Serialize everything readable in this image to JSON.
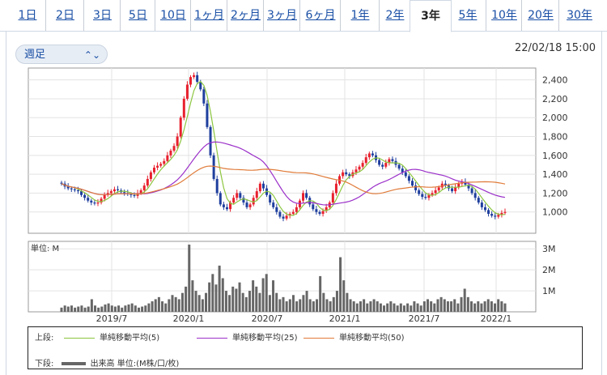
{
  "tabs": [
    {
      "label": "1日"
    },
    {
      "label": "2日"
    },
    {
      "label": "3日"
    },
    {
      "label": "5日"
    },
    {
      "label": "10日"
    },
    {
      "label": "1ヶ月"
    },
    {
      "label": "2ヶ月"
    },
    {
      "label": "3ヶ月"
    },
    {
      "label": "6ヶ月"
    },
    {
      "label": "1年"
    },
    {
      "label": "2年"
    },
    {
      "label": "3年",
      "active": true
    },
    {
      "label": "5年"
    },
    {
      "label": "10年"
    },
    {
      "label": "20年"
    },
    {
      "label": "30年"
    }
  ],
  "period_select": {
    "value": "週足"
  },
  "datetime": "22/02/18 15:00",
  "colors": {
    "up": "#e8202e",
    "down": "#1f3f9e",
    "ma5": "#8cc63f",
    "ma25": "#9b30c9",
    "ma50": "#e07b39",
    "volume": "#666666"
  },
  "chart_data": [
    {
      "type": "candlestick",
      "xlim": [
        "2019-02",
        "2022-02"
      ],
      "ylim": [
        800,
        2500
      ],
      "x_tick_labels": [
        "2019/7",
        "2020/1",
        "2020/7",
        "2021/1",
        "2021/7",
        "2022/1"
      ],
      "y_tick_labels": [
        "2,400",
        "2,200",
        "2,000",
        "1,800",
        "1,600",
        "1,400",
        "1,200",
        "1,000"
      ],
      "close": [
        1300,
        1270,
        1250,
        1240,
        1230,
        1220,
        1180,
        1150,
        1120,
        1100,
        1090,
        1100,
        1140,
        1180,
        1200,
        1220,
        1240,
        1230,
        1210,
        1200,
        1190,
        1180,
        1170,
        1200,
        1230,
        1280,
        1350,
        1420,
        1470,
        1490,
        1510,
        1540,
        1600,
        1650,
        1700,
        1800,
        2000,
        2200,
        2350,
        2430,
        2450,
        2380,
        2300,
        2150,
        1900,
        1600,
        1350,
        1200,
        1080,
        1050,
        1030,
        1100,
        1150,
        1200,
        1150,
        1100,
        1050,
        1080,
        1150,
        1220,
        1300,
        1250,
        1180,
        1100,
        1050,
        1000,
        950,
        930,
        960,
        980,
        1000,
        1050,
        1120,
        1200,
        1150,
        1080,
        1030,
        1000,
        980,
        1010,
        1050,
        1100,
        1200,
        1300,
        1380,
        1420,
        1400,
        1380,
        1420,
        1450,
        1480,
        1520,
        1580,
        1620,
        1600,
        1550,
        1500,
        1480,
        1520,
        1560,
        1540,
        1500,
        1460,
        1420,
        1380,
        1330,
        1280,
        1230,
        1190,
        1160,
        1150,
        1180,
        1200,
        1230,
        1260,
        1300,
        1280,
        1250,
        1220,
        1260,
        1300,
        1320,
        1290,
        1250,
        1200,
        1150,
        1100,
        1050,
        1020,
        980,
        960,
        950,
        970,
        990,
        1000
      ],
      "ma_legend": {
        "upper_label": "上段:",
        "lower_label": "下段:",
        "items": [
          {
            "label": "単純移動平均(5)"
          },
          {
            "label": "単純移動平均(25)"
          },
          {
            "label": "単純移動平均(50)"
          }
        ],
        "volume_label": "出来高 単位:(M株/口/枚)"
      }
    },
    {
      "type": "bar",
      "unit_label": "単位: M",
      "ylim": [
        0,
        3.2
      ],
      "y_tick_labels": [
        "3M",
        "2M",
        "1M"
      ],
      "values": [
        0.2,
        0.3,
        0.25,
        0.3,
        0.2,
        0.25,
        0.3,
        0.2,
        0.25,
        0.6,
        0.3,
        0.2,
        0.25,
        0.35,
        0.4,
        0.3,
        0.25,
        0.3,
        0.2,
        0.3,
        0.35,
        0.4,
        0.3,
        0.2,
        0.25,
        0.3,
        0.4,
        0.5,
        0.6,
        0.7,
        0.5,
        0.4,
        0.6,
        0.8,
        0.7,
        0.6,
        0.9,
        1.2,
        3.2,
        1.5,
        1.0,
        0.8,
        0.6,
        0.9,
        1.4,
        1.8,
        1.3,
        2.2,
        1.6,
        1.0,
        0.8,
        1.2,
        1.1,
        1.4,
        0.9,
        0.7,
        1.0,
        1.5,
        1.2,
        0.9,
        1.6,
        1.8,
        0.8,
        1.5,
        0.9,
        0.6,
        0.7,
        0.5,
        0.6,
        0.8,
        0.5,
        0.6,
        0.8,
        1.0,
        0.6,
        0.5,
        0.6,
        1.7,
        0.9,
        0.6,
        0.5,
        0.7,
        1.0,
        2.6,
        1.5,
        0.9,
        0.6,
        0.5,
        0.4,
        0.5,
        0.6,
        0.4,
        0.5,
        0.6,
        0.5,
        0.4,
        0.3,
        0.4,
        0.5,
        0.4,
        0.3,
        0.4,
        0.3,
        0.4,
        0.3,
        0.5,
        0.4,
        0.3,
        0.5,
        0.6,
        0.5,
        0.4,
        0.6,
        0.7,
        0.6,
        0.5,
        0.5,
        0.6,
        0.4,
        0.7,
        1.1,
        0.7,
        0.5,
        0.4,
        0.5,
        0.4,
        0.5,
        0.6,
        0.5,
        0.4,
        0.6,
        0.5,
        0.4
      ]
    }
  ]
}
